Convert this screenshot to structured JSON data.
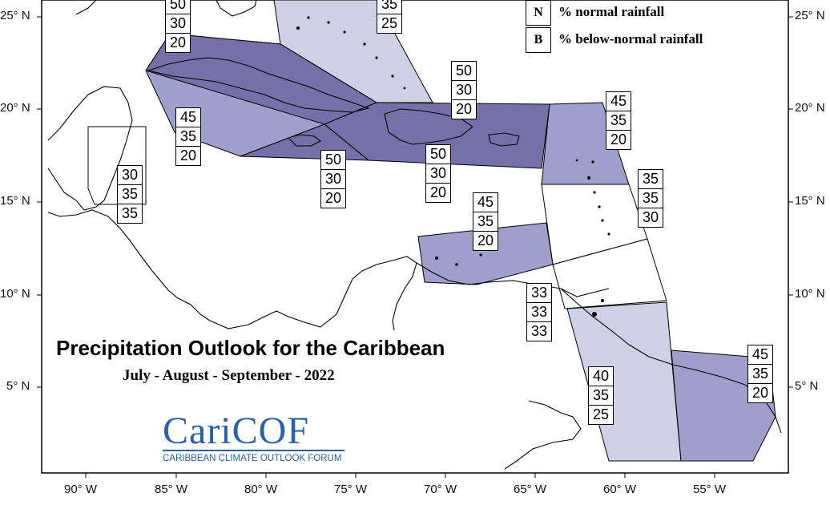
{
  "title": "Precipitation Outlook for the Caribbean",
  "subtitle": "July - August - September - 2022",
  "logo": {
    "name": "CariCOF",
    "tagline": "CARIBBEAN CLIMATE OUTLOOK FORUM"
  },
  "legend": [
    {
      "key": "N",
      "label": "% normal rainfall"
    },
    {
      "key": "B",
      "label": "% below-normal rainfall"
    }
  ],
  "lat_labels": [
    "25° N",
    "20° N",
    "15° N",
    "10° N",
    "5° N"
  ],
  "lon_labels": [
    "90° W",
    "85° W",
    "80° W",
    "75° W",
    "70° W",
    "65° W",
    "60° W",
    "55° W"
  ],
  "colors": {
    "light": "#cfcfe6",
    "medium": "#9f9fcb",
    "dark": "#7471a8",
    "outline": "#000000"
  },
  "regions": [
    {
      "id": "bahamas",
      "values": [
        "35",
        "25"
      ]
    },
    {
      "id": "cuba-top",
      "values": [
        "50",
        "30",
        "20"
      ]
    },
    {
      "id": "hispaniola-pr",
      "values": [
        "50",
        "30",
        "20"
      ]
    },
    {
      "id": "leeward",
      "values": [
        "45",
        "35",
        "20"
      ]
    },
    {
      "id": "cayman",
      "values": [
        "45",
        "35",
        "20"
      ]
    },
    {
      "id": "jamaica",
      "values": [
        "50",
        "30",
        "20"
      ]
    },
    {
      "id": "hispaniola-south",
      "values": [
        "50",
        "30",
        "20"
      ]
    },
    {
      "id": "belize",
      "values": [
        "30",
        "35",
        "35"
      ]
    },
    {
      "id": "windward",
      "values": [
        "35",
        "35",
        "30"
      ]
    },
    {
      "id": "abc-islands",
      "values": [
        "45",
        "35",
        "20"
      ]
    },
    {
      "id": "trinidad",
      "values": [
        "33",
        "33",
        "33"
      ]
    },
    {
      "id": "guyana",
      "values": [
        "40",
        "35",
        "25"
      ]
    },
    {
      "id": "french-guiana",
      "values": [
        "45",
        "35",
        "20"
      ]
    }
  ]
}
